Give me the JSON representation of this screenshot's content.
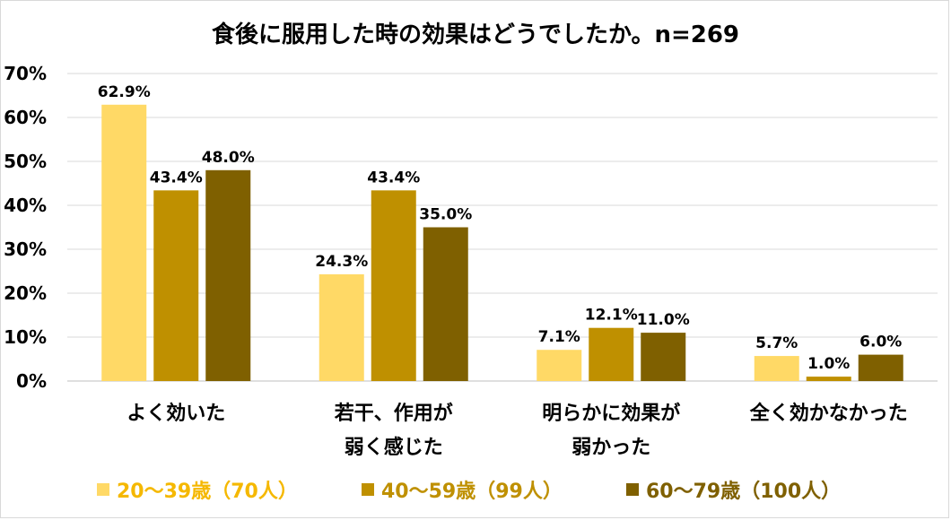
{
  "chart_data": {
    "type": "bar",
    "title": "食後に服用した時の効果はどうでしたか。n=269",
    "categories": [
      [
        "よく効いた"
      ],
      [
        "若干、作用が",
        "弱く感じた"
      ],
      [
        "明らかに効果が",
        "弱かった"
      ],
      [
        "全く効かなかった"
      ]
    ],
    "series": [
      {
        "name": "20〜39歳（70人）",
        "color": "#FFD966",
        "labelColor": "#F5B800",
        "values": [
          62.9,
          24.3,
          7.1,
          5.7
        ]
      },
      {
        "name": "40〜59歳（99人）",
        "color": "#BF9000",
        "labelColor": "#BF9000",
        "values": [
          43.4,
          43.4,
          12.1,
          1.0
        ]
      },
      {
        "name": "60〜79歳（100人）",
        "color": "#7F6000",
        "labelColor": "#7F6000",
        "values": [
          48.0,
          35.0,
          11.0,
          6.0
        ]
      }
    ],
    "data_labels": [
      [
        "62.9%",
        "24.3%",
        "7.1%",
        "5.7%"
      ],
      [
        "43.4%",
        "43.4%",
        "12.1%",
        "1.0%"
      ],
      [
        "48.0%",
        "35.0%",
        "11.0%",
        "6.0%"
      ]
    ],
    "y_ticks": [
      "0%",
      "10%",
      "20%",
      "30%",
      "40%",
      "50%",
      "60%",
      "70%"
    ],
    "ylim": [
      0,
      70
    ],
    "ystep": 10,
    "grid": true,
    "legend_position": "bottom"
  }
}
